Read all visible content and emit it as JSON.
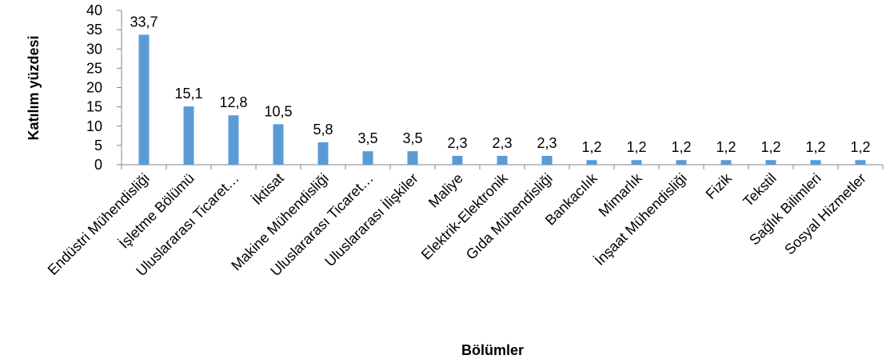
{
  "chart_data": {
    "type": "bar",
    "title": "",
    "xlabel": "Bölümler",
    "ylabel": "Katılım yüzdesi",
    "ylim": [
      0,
      40
    ],
    "yticks": [
      "0",
      "5",
      "10",
      "15",
      "20",
      "25",
      "30",
      "35",
      "40"
    ],
    "ytick_values": [
      0,
      5,
      10,
      15,
      20,
      25,
      30,
      35,
      40
    ],
    "grid": false,
    "legend": "none",
    "bar_color": "#5B9BD5",
    "categories": [
      "Endüstri Mühendisliği",
      "İşletme Bölümü",
      "Uluslararası Ticaret…",
      "İktisat",
      "Makine Mühendisliği",
      "Uluslararası Ticaret…",
      "Uluslararası İlişkiler",
      "Maliye",
      "Elektrik-Elektronik",
      "Gıda Mühendisliği",
      "Bankacılık",
      "Mimarlık",
      "İnşaat Mühendisliği",
      "Fizik",
      "Tekstil",
      "Sağlık Bilimleri",
      "Sosyal Hizmetler"
    ],
    "values": [
      33.7,
      15.1,
      12.8,
      10.5,
      5.8,
      3.5,
      3.5,
      2.3,
      2.3,
      2.3,
      1.2,
      1.2,
      1.2,
      1.2,
      1.2,
      1.2,
      1.2
    ],
    "value_labels": [
      "33,7",
      "15,1",
      "12,8",
      "10,5",
      "5,8",
      "3,5",
      "3,5",
      "2,3",
      "2,3",
      "2,3",
      "1,2",
      "1,2",
      "1,2",
      "1,2",
      "1,2",
      "1,2",
      "1,2"
    ]
  }
}
